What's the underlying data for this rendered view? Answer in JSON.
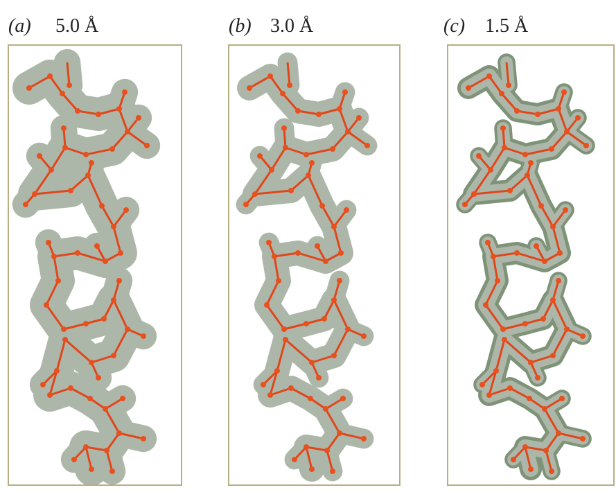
{
  "panels": [
    {
      "label": "(a)",
      "resolution": "5.0 Å"
    },
    {
      "label": "(b)",
      "resolution": "3.0 Å"
    },
    {
      "label": "(c)",
      "resolution": "1.5 Å"
    }
  ]
}
